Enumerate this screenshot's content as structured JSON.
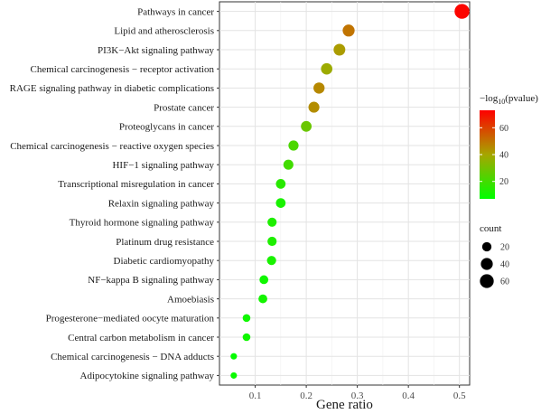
{
  "chart_data": {
    "type": "scatter",
    "title": "",
    "xlabel": "Gene ratio",
    "ylabel": "",
    "xlim": [
      0.03,
      0.52
    ],
    "xticks": [
      0.1,
      0.2,
      0.3,
      0.4,
      0.5
    ],
    "xtick_labels": [
      "0.1",
      "0.2",
      "0.3",
      "0.4",
      "0.5"
    ],
    "grid": true,
    "categories": [
      "Pathways in cancer",
      "Lipid and atherosclerosis",
      "PI3K−Akt signaling pathway",
      "Chemical carcinogenesis − receptor activation",
      "RAGE signaling pathway in diabetic complications",
      "Prostate cancer",
      "Proteoglycans in cancer",
      "Chemical carcinogenesis − reactive oxygen species",
      "HIF−1 signaling pathway",
      "Transcriptional misregulation in cancer",
      "Relaxin signaling pathway",
      "Thyroid hormone signaling pathway",
      "Platinum drug resistance",
      "Diabetic cardiomyopathy",
      "NF−kappa B signaling pathway",
      "Amoebiasis",
      "Progesterone−mediated oocyte maturation",
      "Central carbon metabolism in cancer",
      "Chemical carcinogenesis − DNA adducts",
      "Adipocytokine signaling pathway"
    ],
    "gene_ratio": [
      0.505,
      0.283,
      0.265,
      0.24,
      0.225,
      0.215,
      0.2,
      0.175,
      0.165,
      0.15,
      0.15,
      0.133,
      0.133,
      0.132,
      0.117,
      0.115,
      0.083,
      0.083,
      0.058,
      0.058
    ],
    "count": [
      72,
      40,
      38,
      35,
      33,
      31,
      29,
      25,
      24,
      22,
      22,
      19,
      19,
      19,
      17,
      17,
      12,
      12,
      8,
      8
    ],
    "neg_log10_pvalue": [
      72,
      50,
      42,
      38,
      46,
      45,
      28,
      22,
      20,
      15,
      12,
      13,
      13,
      12,
      10,
      11,
      10,
      10,
      8,
      9
    ],
    "legend": {
      "placement": "right",
      "color_title": "−log10(pvalue)",
      "color_title_main": "−log",
      "color_title_sub": "10",
      "color_title_end": "(pvalue)",
      "color_range": [
        7,
        73
      ],
      "color_ticks": [
        20,
        40,
        60
      ],
      "color_tick_labels": [
        "20",
        "40",
        "60"
      ],
      "color_low": "#00ff00",
      "color_high": "#ff0000",
      "size_title": "count",
      "size_values": [
        20,
        40,
        60
      ],
      "size_labels": [
        "20",
        "40",
        "60"
      ]
    }
  }
}
